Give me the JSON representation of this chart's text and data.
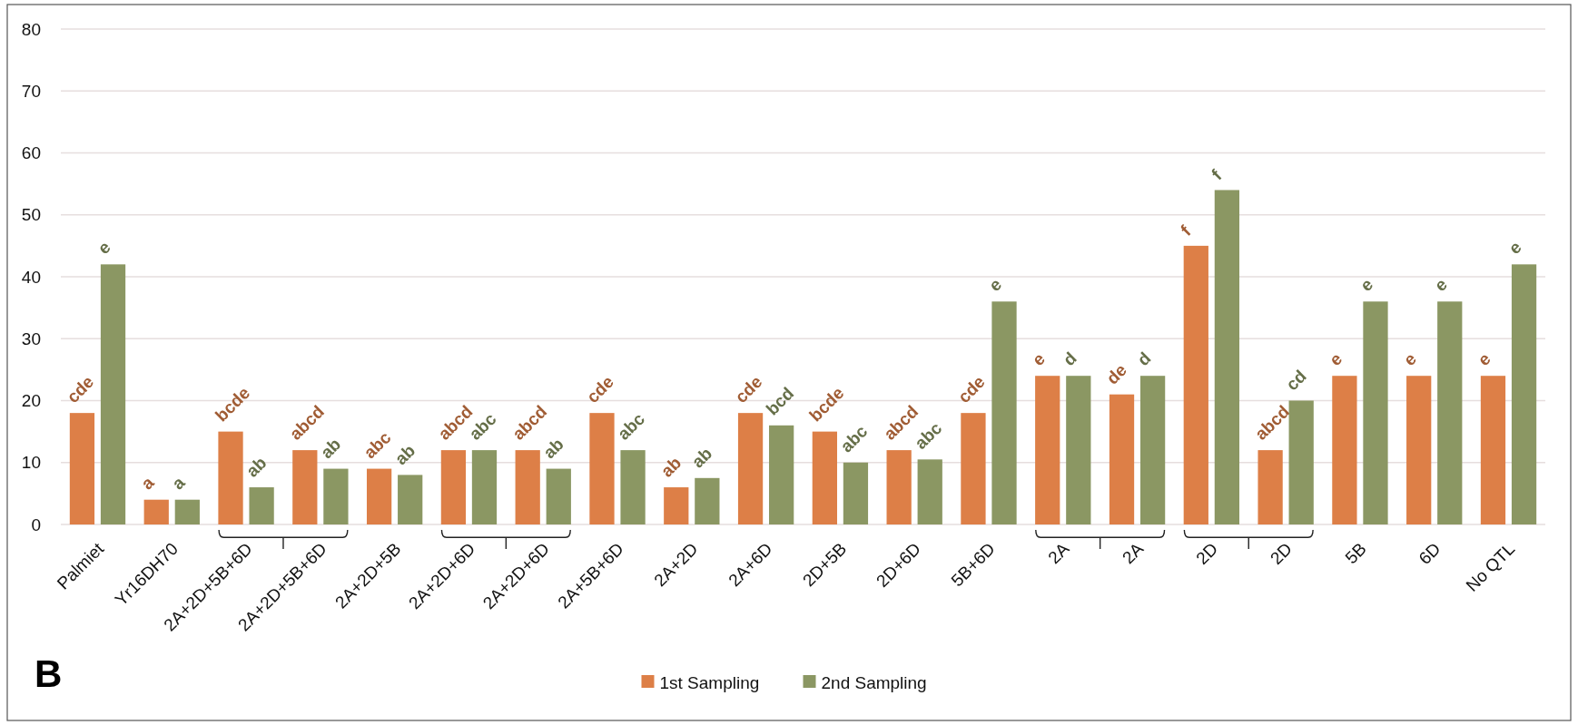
{
  "chart_data": {
    "type": "bar",
    "categories": [
      "Palmiet",
      "Yr16DH70",
      "2A+2D+5B+6D",
      "2A+2D+5B+6D",
      "2A+2D+5B",
      "2A+2D+6D",
      "2A+2D+6D",
      "2A+5B+6D",
      "2A+2D",
      "2A+6D",
      "2D+5B",
      "2D+6D",
      "5B+6D",
      "2A",
      "2A",
      "2D",
      "2D",
      "5B",
      "6D",
      "No QTL"
    ],
    "series": [
      {
        "name": "1st Sampling",
        "color": "#dd7f47",
        "values": [
          18,
          4,
          15,
          12,
          9,
          12,
          12,
          18,
          6,
          18,
          15,
          12,
          18,
          24,
          21,
          45,
          12,
          24,
          24,
          24
        ],
        "value_labels": [
          "cde",
          "a",
          "bcde",
          "abcd",
          "abc",
          "abcd",
          "abcd",
          "cde",
          "ab",
          "cde",
          "bcde",
          "abcd",
          "cde",
          "e",
          "de",
          "f",
          "abcd",
          "e",
          "e",
          "e"
        ]
      },
      {
        "name": "2nd Sampling",
        "color": "#8b9763",
        "values": [
          42,
          4,
          6,
          9,
          8,
          12,
          9,
          12,
          7.5,
          16,
          10,
          10.5,
          36,
          24,
          24,
          54,
          20,
          36,
          36,
          42
        ],
        "value_labels": [
          "e",
          "a",
          "ab",
          "ab",
          "ab",
          "abc",
          "ab",
          "abc",
          "ab",
          "bcd",
          "abc",
          "abc",
          "e",
          "d",
          "d",
          "f",
          "cd",
          "e",
          "e",
          "e"
        ]
      }
    ],
    "ylim": [
      0,
      80
    ],
    "yticks": [
      0,
      10,
      20,
      30,
      40,
      50,
      60,
      70,
      80
    ],
    "grid": "y",
    "legend": "bottom",
    "annotations": [
      "B"
    ]
  }
}
